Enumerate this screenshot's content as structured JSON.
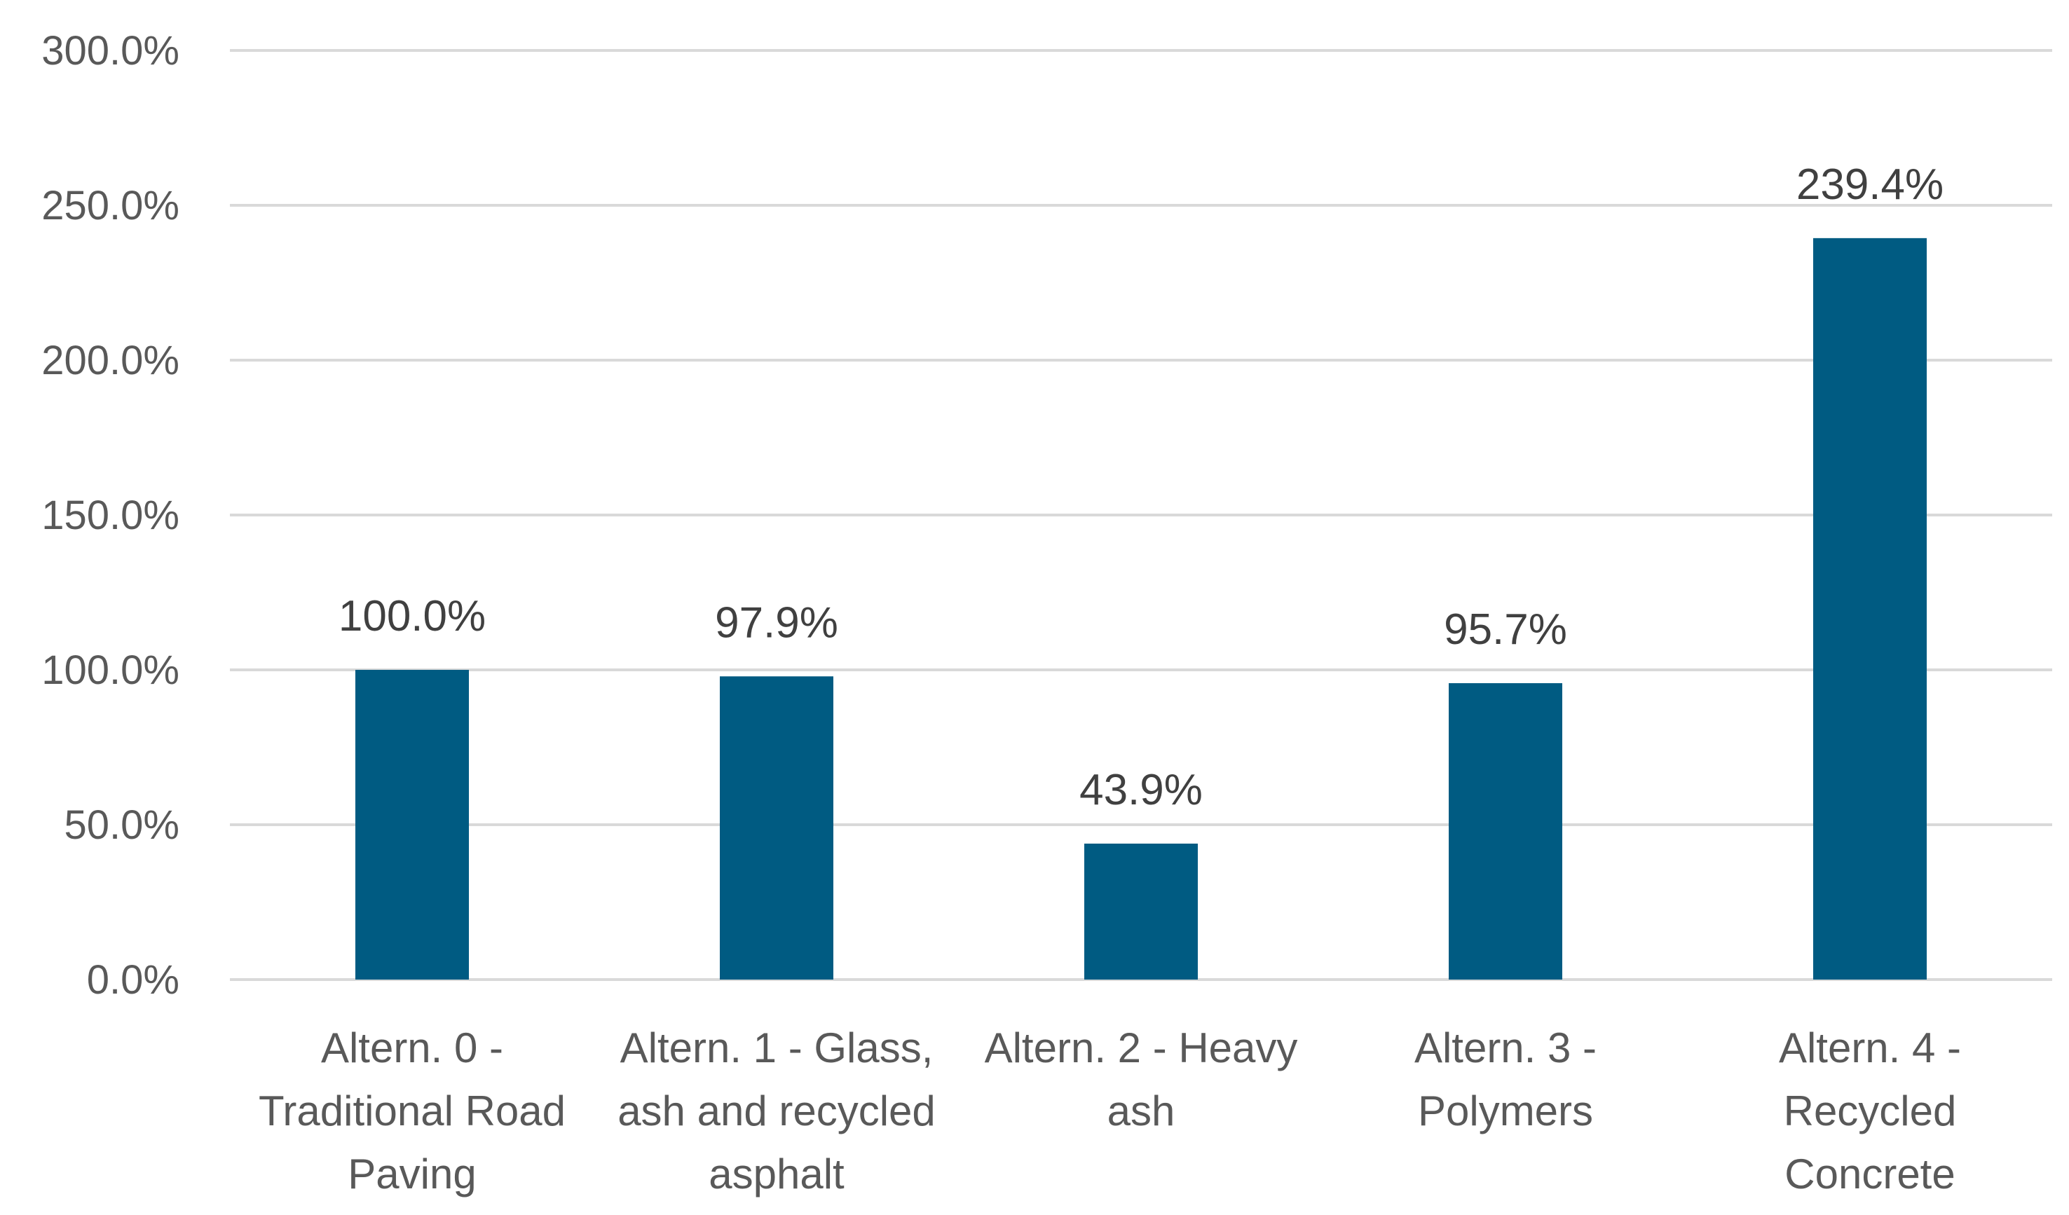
{
  "chart_data": {
    "type": "bar",
    "title": "",
    "xlabel": "",
    "ylabel": "",
    "categories": [
      "Altern. 0 - Traditional Road Paving",
      "Altern. 1 - Glass, ash and recycled asphalt",
      "Altern. 2 - Heavy ash",
      "Altern. 3 - Polymers",
      "Altern. 4 - Recycled Concrete"
    ],
    "category_lines": [
      [
        "Altern. 0 -",
        "Traditional Road",
        "Paving"
      ],
      [
        "Altern. 1 - Glass,",
        "ash and recycled",
        "asphalt"
      ],
      [
        "Altern. 2 - Heavy",
        "ash"
      ],
      [
        "Altern. 3 -",
        "Polymers"
      ],
      [
        "Altern. 4 -",
        "Recycled",
        "Concrete"
      ]
    ],
    "series": [
      {
        "values": [
          100.0,
          97.9,
          43.9,
          95.7,
          239.4
        ],
        "color": "#005b82"
      }
    ],
    "data_labels": [
      "100.0%",
      "97.9%",
      "43.9%",
      "95.7%",
      "239.4%"
    ],
    "ylim": [
      0,
      300
    ],
    "yticks": [
      0,
      50,
      100,
      150,
      200,
      250,
      300
    ],
    "ytick_labels": [
      "0.0%",
      "50.0%",
      "100.0%",
      "150.0%",
      "200.0%",
      "250.0%",
      "300.0%"
    ],
    "grid": true,
    "legend": "none"
  }
}
